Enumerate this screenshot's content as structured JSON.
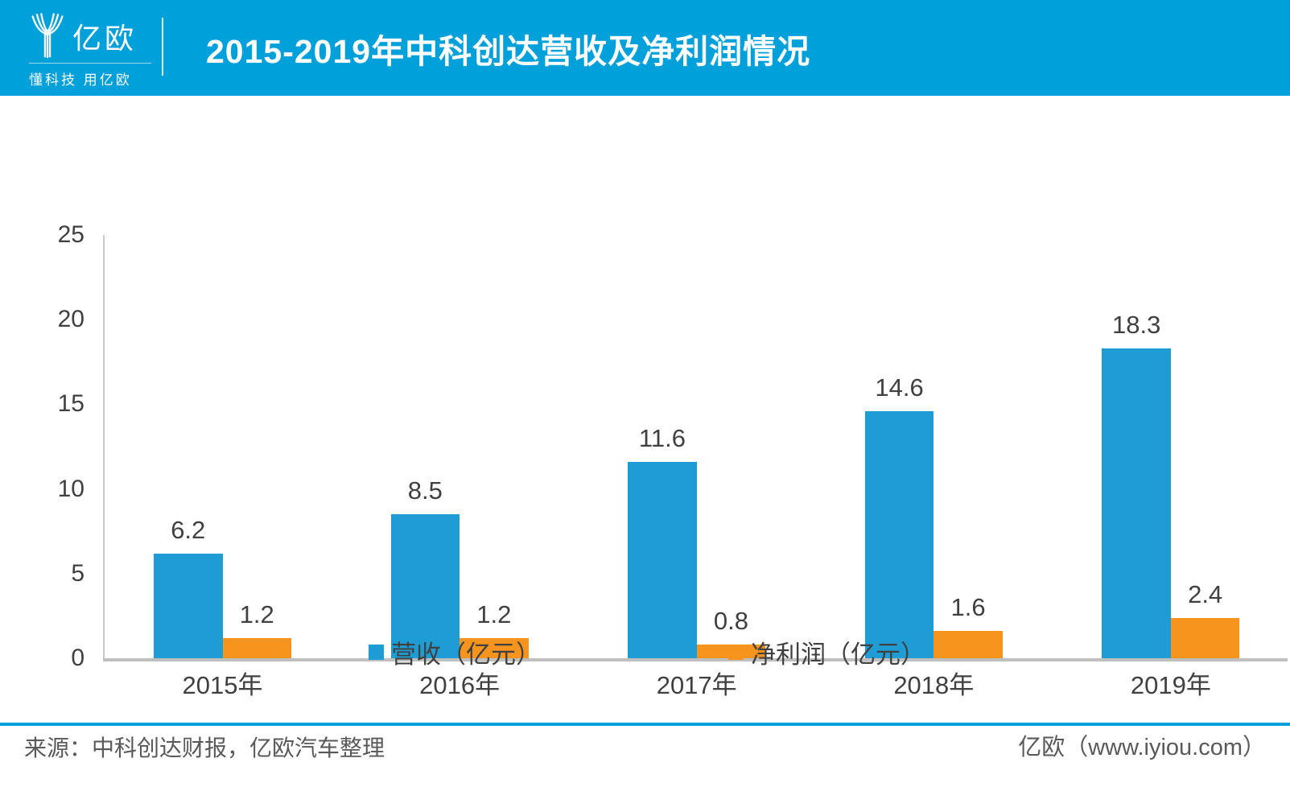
{
  "header": {
    "brand": "亿欧",
    "tagline": "懂科技 用亿欧",
    "title": "2015-2019年中科创达营收及净利润情况"
  },
  "colors": {
    "header_bg": "#00A0DB",
    "revenue_bar": "#1E9CD4",
    "profit_bar": "#F7941E",
    "axis_line": "#BFBFBF",
    "text_dark": "#404040",
    "footer_text": "#595959"
  },
  "chart_data": {
    "type": "bar",
    "categories": [
      "2015年",
      "2016年",
      "2017年",
      "2018年",
      "2019年"
    ],
    "series": [
      {
        "name": "营收（亿元）",
        "color_key": "revenue_bar",
        "values": [
          6.2,
          8.5,
          11.6,
          14.6,
          18.3
        ]
      },
      {
        "name": "净利润（亿元）",
        "color_key": "profit_bar",
        "values": [
          1.2,
          1.2,
          0.8,
          1.6,
          2.4
        ]
      }
    ],
    "title": "2015-2019年中科创达营收及净利润情况",
    "xlabel": "",
    "ylabel": "",
    "ylim": [
      0,
      25
    ],
    "yticks": [
      0,
      5,
      10,
      15,
      20,
      25
    ],
    "grid": false,
    "legend_position": "bottom",
    "data_labels": true
  },
  "footer": {
    "source": "来源：中科创达财报，亿欧汽车整理",
    "site": "亿欧（www.iyiou.com）"
  }
}
